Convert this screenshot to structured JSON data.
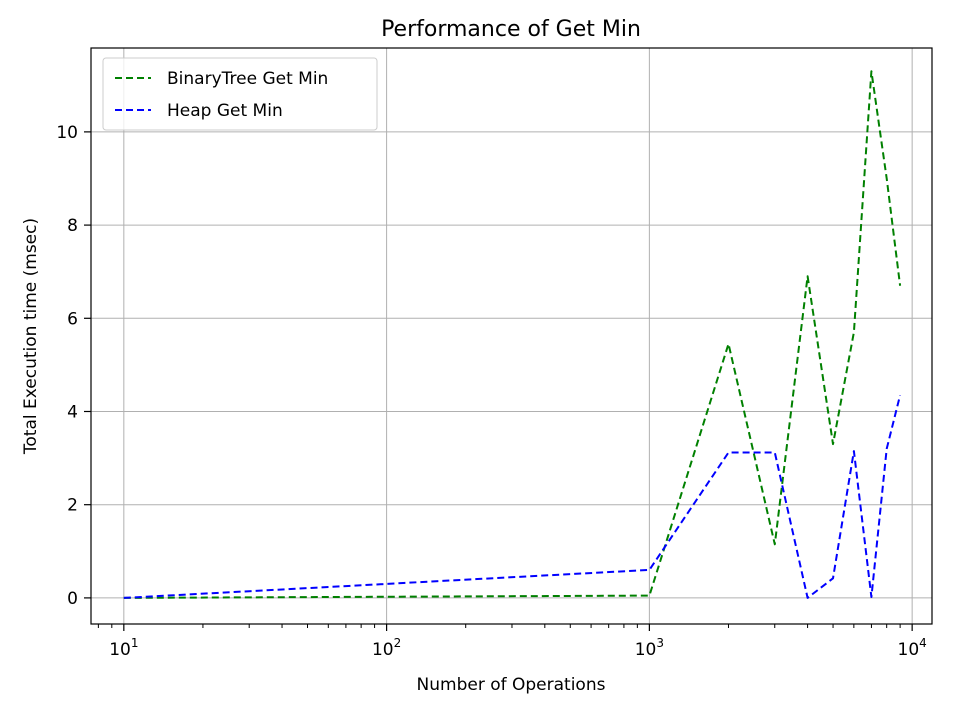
{
  "chart_data": {
    "type": "line",
    "title": "Performance of Get Min",
    "xlabel": "Number of Operations",
    "ylabel": "Total Execution time (msec)",
    "xscale": "log",
    "xlim": [
      7.5,
      11900
    ],
    "ylim": [
      -0.56,
      11.8
    ],
    "grid": true,
    "legend_position": "top-left",
    "x_ticks": [
      {
        "base": "10",
        "exp": "1",
        "value": 10
      },
      {
        "base": "10",
        "exp": "2",
        "value": 100
      },
      {
        "base": "10",
        "exp": "3",
        "value": 1000
      },
      {
        "base": "10",
        "exp": "4",
        "value": 10000
      }
    ],
    "y_ticks": [
      0,
      2,
      4,
      6,
      8,
      10
    ],
    "series": [
      {
        "name": "BinaryTree Get Min",
        "color": "#008000",
        "style": "dashed",
        "x": [
          10,
          1000,
          2000,
          3000,
          4000,
          5000,
          6000,
          7000,
          8000,
          9000
        ],
        "y": [
          0.0,
          0.05,
          5.45,
          1.15,
          6.9,
          3.3,
          5.7,
          11.3,
          9.0,
          6.7
        ]
      },
      {
        "name": "Heap Get Min",
        "color": "#0000ff",
        "style": "dashed",
        "x": [
          10,
          1000,
          2000,
          3000,
          4000,
          5000,
          6000,
          7000,
          8000,
          9000
        ],
        "y": [
          0.0,
          0.6,
          3.12,
          3.12,
          0.0,
          0.42,
          3.15,
          0.02,
          3.2,
          4.35
        ]
      }
    ]
  }
}
